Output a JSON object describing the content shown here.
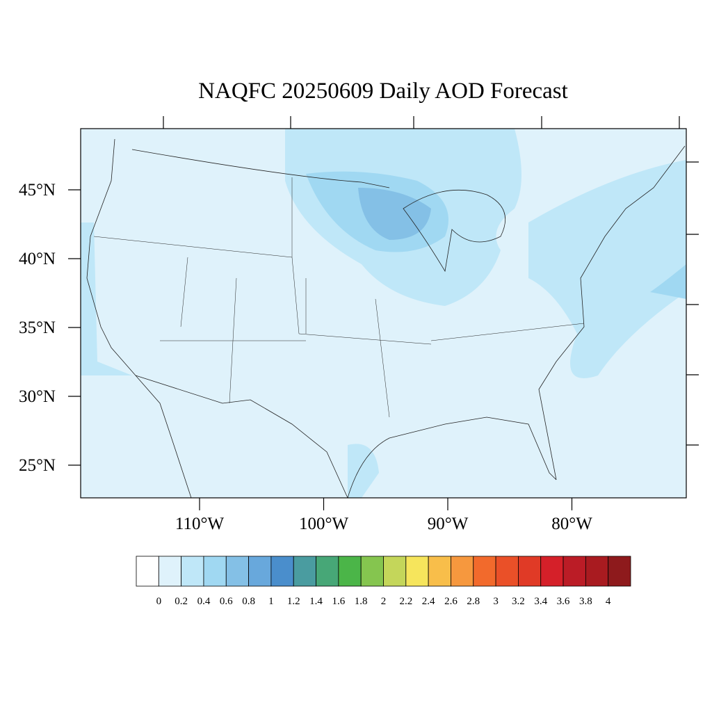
{
  "map": {
    "title": "NAQFC 20250609 Daily AOD Forecast",
    "lat_ticks": [
      {
        "value": 45,
        "label": "45°N"
      },
      {
        "value": 40,
        "label": "40°N"
      },
      {
        "value": 35,
        "label": "35°N"
      },
      {
        "value": 30,
        "label": "30°N"
      },
      {
        "value": 25,
        "label": "25°N"
      }
    ],
    "lon_ticks": [
      {
        "value": -110,
        "label": "110°W"
      },
      {
        "value": -100,
        "label": "100°W"
      },
      {
        "value": -90,
        "label": "90°W"
      },
      {
        "value": -80,
        "label": "80°W"
      }
    ],
    "colorbar": {
      "levels": [
        0,
        0.2,
        0.4,
        0.6,
        0.8,
        1,
        1.2,
        1.4,
        1.6,
        1.8,
        2,
        2.2,
        2.4,
        2.6,
        2.8,
        3,
        3.2,
        3.4,
        3.6,
        3.8,
        4
      ],
      "colors": [
        "#ffffff",
        "#dff2fb",
        "#bfe7f8",
        "#a0d8f2",
        "#84c0e6",
        "#68a8dc",
        "#4a8ecc",
        "#4a9ca0",
        "#47a777",
        "#4bb548",
        "#85c54f",
        "#c4d65a",
        "#f6e55c",
        "#f8be4a",
        "#f6983e",
        "#f26a2c",
        "#ea5028",
        "#e03a26",
        "#d52029",
        "#bb1c26",
        "#a91b20",
        "#8e1a1c"
      ]
    }
  }
}
